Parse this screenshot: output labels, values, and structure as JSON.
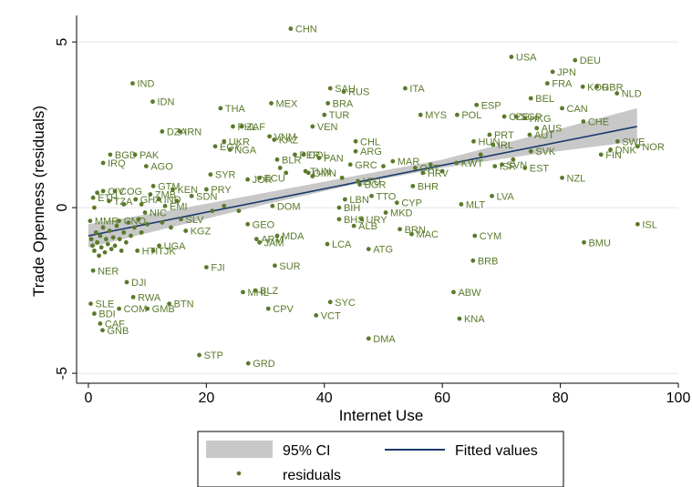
{
  "colors": {
    "background": "#ffffff",
    "point": "#5a7a2a",
    "point_label": "#5a7a2a",
    "fit_line": "#1a3a6b",
    "ci_band": "#c8c8c8",
    "grid": "#e5e5e5",
    "axis": "#000000"
  },
  "chart_data": {
    "type": "scatter",
    "xlabel": "Internet Use",
    "ylabel": "Trade Openness (residuals)",
    "xlim": [
      -2,
      100
    ],
    "ylim": [
      -5.3,
      5.8
    ],
    "xticks": [
      0,
      20,
      40,
      60,
      80,
      100
    ],
    "yticks": [
      -5,
      0,
      5
    ],
    "grid": "horizontal",
    "fitted": {
      "x": [
        0,
        93
      ],
      "y": [
        -0.85,
        2.45
      ]
    },
    "ci": {
      "x": [
        0,
        15,
        30,
        45,
        60,
        75,
        93
      ],
      "lower": [
        -1.2,
        -0.55,
        0.1,
        0.7,
        1.2,
        1.6,
        2.0
      ],
      "upper": [
        -0.5,
        -0.05,
        0.45,
        0.95,
        1.45,
        2.15,
        3.0
      ]
    },
    "legend": {
      "placement": "bottom",
      "items": [
        {
          "kind": "area",
          "label": "95% CI"
        },
        {
          "kind": "line",
          "label": "Fitted values"
        },
        {
          "kind": "marker",
          "label": "residuals"
        }
      ]
    },
    "points": [
      {
        "label": "CHN",
        "x": 34.3,
        "y": 5.4
      },
      {
        "label": "USA",
        "x": 71.7,
        "y": 4.55
      },
      {
        "label": "DEU",
        "x": 82.5,
        "y": 4.45
      },
      {
        "label": "JPN",
        "x": 78.7,
        "y": 4.1
      },
      {
        "label": "FRA",
        "x": 77.8,
        "y": 3.75
      },
      {
        "label": "KOR",
        "x": 83.8,
        "y": 3.65
      },
      {
        "label": "GBR",
        "x": 86.2,
        "y": 3.65
      },
      {
        "label": "NLD",
        "x": 89.6,
        "y": 3.45
      },
      {
        "label": "IND",
        "x": 7.5,
        "y": 3.75
      },
      {
        "label": "IDN",
        "x": 10.9,
        "y": 3.2
      },
      {
        "label": "SAU",
        "x": 41.0,
        "y": 3.6
      },
      {
        "label": "RUS",
        "x": 43.3,
        "y": 3.5
      },
      {
        "label": "ITA",
        "x": 53.7,
        "y": 3.6
      },
      {
        "label": "BRA",
        "x": 40.6,
        "y": 3.15
      },
      {
        "label": "MEX",
        "x": 31.0,
        "y": 3.15
      },
      {
        "label": "THA",
        "x": 22.4,
        "y": 3.0
      },
      {
        "label": "TUR",
        "x": 40.0,
        "y": 2.8
      },
      {
        "label": "ESP",
        "x": 65.8,
        "y": 3.1
      },
      {
        "label": "BEL",
        "x": 75.0,
        "y": 3.3
      },
      {
        "label": "CAN",
        "x": 80.3,
        "y": 3.0
      },
      {
        "label": "MYS",
        "x": 56.3,
        "y": 2.8
      },
      {
        "label": "POL",
        "x": 62.5,
        "y": 2.8
      },
      {
        "label": "CZE",
        "x": 70.5,
        "y": 2.75
      },
      {
        "label": "SGP",
        "x": 72.5,
        "y": 2.75
      },
      {
        "label": "HKG",
        "x": 74.0,
        "y": 2.7
      },
      {
        "label": "CHE",
        "x": 83.9,
        "y": 2.6
      },
      {
        "label": "AUS",
        "x": 76.0,
        "y": 2.4
      },
      {
        "label": "PHL",
        "x": 24.5,
        "y": 2.45
      },
      {
        "label": "ZAF",
        "x": 26.0,
        "y": 2.45
      },
      {
        "label": "DZA",
        "x": 12.5,
        "y": 2.3
      },
      {
        "label": "IRN",
        "x": 15.5,
        "y": 2.3
      },
      {
        "label": "VEN",
        "x": 38.0,
        "y": 2.45
      },
      {
        "label": "VNM",
        "x": 30.7,
        "y": 2.15
      },
      {
        "label": "KAZ",
        "x": 31.5,
        "y": 2.05
      },
      {
        "label": "UKR",
        "x": 23.0,
        "y": 2.0
      },
      {
        "label": "EGY",
        "x": 21.5,
        "y": 1.85
      },
      {
        "label": "NGA",
        "x": 24.0,
        "y": 1.75
      },
      {
        "label": "CHL",
        "x": 45.3,
        "y": 2.0
      },
      {
        "label": "ARG",
        "x": 45.3,
        "y": 1.7
      },
      {
        "label": "HUN",
        "x": 65.3,
        "y": 2.0
      },
      {
        "label": "IRL",
        "x": 68.6,
        "y": 1.9
      },
      {
        "label": "PRT",
        "x": 68.0,
        "y": 2.2
      },
      {
        "label": "AUT",
        "x": 74.8,
        "y": 2.2
      },
      {
        "label": "SWE",
        "x": 89.7,
        "y": 2.0
      },
      {
        "label": "NOR",
        "x": 93.1,
        "y": 1.85
      },
      {
        "label": "DNK",
        "x": 88.5,
        "y": 1.75
      },
      {
        "label": "FIN",
        "x": 86.9,
        "y": 1.6
      },
      {
        "label": "SVK",
        "x": 75.0,
        "y": 1.7
      },
      {
        "label": "ISR",
        "x": 68.9,
        "y": 1.25
      },
      {
        "label": "SVN",
        "x": 70.1,
        "y": 1.3
      },
      {
        "label": "EST",
        "x": 74.0,
        "y": 1.2
      },
      {
        "label": "NZL",
        "x": 80.3,
        "y": 0.9
      },
      {
        "label": "COL",
        "x": 36.5,
        "y": 1.6
      },
      {
        "label": "PER",
        "x": 35.0,
        "y": 1.6
      },
      {
        "label": "PAN",
        "x": 39.1,
        "y": 1.5
      },
      {
        "label": "BLR",
        "x": 32.0,
        "y": 1.45
      },
      {
        "label": "GRC",
        "x": 44.4,
        "y": 1.3
      },
      {
        "label": "MAR",
        "x": 51.6,
        "y": 1.4
      },
      {
        "label": "QAT",
        "x": 55.4,
        "y": 1.2
      },
      {
        "label": "KWT",
        "x": 62.4,
        "y": 1.35
      },
      {
        "label": "HRV",
        "x": 56.7,
        "y": 1.05
      },
      {
        "label": "BHR",
        "x": 55.0,
        "y": 0.65
      },
      {
        "label": "LVA",
        "x": 68.4,
        "y": 0.35
      },
      {
        "label": "BGD",
        "x": 3.7,
        "y": 1.6
      },
      {
        "label": "PAK",
        "x": 7.9,
        "y": 1.6
      },
      {
        "label": "IRQ",
        "x": 2.5,
        "y": 1.35
      },
      {
        "label": "AGO",
        "x": 9.8,
        "y": 1.25
      },
      {
        "label": "SYR",
        "x": 20.7,
        "y": 1.0
      },
      {
        "label": "ECU",
        "x": 29.0,
        "y": 0.9
      },
      {
        "label": "JOR",
        "x": 27.0,
        "y": 0.85
      },
      {
        "label": "TUN",
        "x": 36.8,
        "y": 1.1
      },
      {
        "label": "OMN",
        "x": 37.3,
        "y": 1.05
      },
      {
        "label": "LTU",
        "x": 45.7,
        "y": 0.8
      },
      {
        "label": "BGR",
        "x": 46.0,
        "y": 0.7
      },
      {
        "label": "GTM",
        "x": 11.0,
        "y": 0.65
      },
      {
        "label": "PRY",
        "x": 20.0,
        "y": 0.55
      },
      {
        "label": "CIV",
        "x": 2.5,
        "y": 0.5
      },
      {
        "label": "COG",
        "x": 4.5,
        "y": 0.5
      },
      {
        "label": "KEN",
        "x": 14.3,
        "y": 0.55
      },
      {
        "label": "ZMB",
        "x": 10.5,
        "y": 0.4
      },
      {
        "label": "SDN",
        "x": 17.5,
        "y": 0.35
      },
      {
        "label": "ETH",
        "x": 0.8,
        "y": 0.3
      },
      {
        "label": "TZA",
        "x": 3.5,
        "y": 0.2
      },
      {
        "label": "GHA",
        "x": 8.0,
        "y": 0.25
      },
      {
        "label": "IND2",
        "x": 12.0,
        "y": 0.25
      },
      {
        "label": "EMI",
        "x": 13.0,
        "y": 0.05
      },
      {
        "label": "TTO",
        "x": 48.0,
        "y": 0.35
      },
      {
        "label": "LBN",
        "x": 43.5,
        "y": 0.25
      },
      {
        "label": "CYP",
        "x": 52.3,
        "y": 0.15
      },
      {
        "label": "MLT",
        "x": 63.2,
        "y": 0.1
      },
      {
        "label": "BIH",
        "x": 42.5,
        "y": 0.0
      },
      {
        "label": "DOM",
        "x": 31.2,
        "y": 0.05
      },
      {
        "label": "MKD",
        "x": 50.4,
        "y": -0.15
      },
      {
        "label": "BHS",
        "x": 42.5,
        "y": -0.35
      },
      {
        "label": "URY",
        "x": 46.3,
        "y": -0.35
      },
      {
        "label": "ALB",
        "x": 45.0,
        "y": -0.55
      },
      {
        "label": "BRN",
        "x": 52.8,
        "y": -0.65
      },
      {
        "label": "MAC",
        "x": 54.8,
        "y": -0.8
      },
      {
        "label": "CYM",
        "x": 65.5,
        "y": -0.85
      },
      {
        "label": "BMU",
        "x": 84.0,
        "y": -1.05
      },
      {
        "label": "ISL",
        "x": 93.1,
        "y": -0.5
      },
      {
        "label": "LCA",
        "x": 40.5,
        "y": -1.1
      },
      {
        "label": "ATG",
        "x": 47.5,
        "y": -1.25
      },
      {
        "label": "BRB",
        "x": 65.2,
        "y": -1.6
      },
      {
        "label": "NIC",
        "x": 9.6,
        "y": -0.15
      },
      {
        "label": "MMR",
        "x": 0.3,
        "y": -0.4
      },
      {
        "label": "CNO",
        "x": 5.2,
        "y": -0.4
      },
      {
        "label": "SLV",
        "x": 15.7,
        "y": -0.35
      },
      {
        "label": "KGZ",
        "x": 16.5,
        "y": -0.7
      },
      {
        "label": "GEO",
        "x": 27.0,
        "y": -0.5
      },
      {
        "label": "MDA",
        "x": 32.0,
        "y": -0.85
      },
      {
        "label": "ARM",
        "x": 28.5,
        "y": -0.95
      },
      {
        "label": "JAM",
        "x": 29.0,
        "y": -1.05
      },
      {
        "label": "UGA",
        "x": 12.0,
        "y": -1.15
      },
      {
        "label": "TJK",
        "x": 11.0,
        "y": -1.3
      },
      {
        "label": "HTI",
        "x": 8.3,
        "y": -1.3
      },
      {
        "label": "NER",
        "x": 0.8,
        "y": -1.9
      },
      {
        "label": "FJI",
        "x": 20.0,
        "y": -1.8
      },
      {
        "label": "SUR",
        "x": 31.6,
        "y": -1.75
      },
      {
        "label": "DJI",
        "x": 6.5,
        "y": -2.25
      },
      {
        "label": "RWA",
        "x": 7.6,
        "y": -2.7
      },
      {
        "label": "BTN",
        "x": 13.7,
        "y": -2.9
      },
      {
        "label": "COM",
        "x": 5.2,
        "y": -3.05
      },
      {
        "label": "GMB",
        "x": 10.0,
        "y": -3.05
      },
      {
        "label": "MHL",
        "x": 26.2,
        "y": -2.55
      },
      {
        "label": "BLZ",
        "x": 28.3,
        "y": -2.5
      },
      {
        "label": "CPV",
        "x": 30.5,
        "y": -3.05
      },
      {
        "label": "SYC",
        "x": 41.0,
        "y": -2.85
      },
      {
        "label": "VCT",
        "x": 38.6,
        "y": -3.25
      },
      {
        "label": "ABW",
        "x": 61.9,
        "y": -2.55
      },
      {
        "label": "KNA",
        "x": 62.9,
        "y": -3.35
      },
      {
        "label": "DMA",
        "x": 47.5,
        "y": -3.95
      },
      {
        "label": "SLE",
        "x": 0.4,
        "y": -2.9
      },
      {
        "label": "BDI",
        "x": 1.0,
        "y": -3.2
      },
      {
        "label": "CAF",
        "x": 2.0,
        "y": -3.5
      },
      {
        "label": "GNB",
        "x": 2.4,
        "y": -3.7
      },
      {
        "label": "STP",
        "x": 18.8,
        "y": -4.45
      },
      {
        "label": "GRD",
        "x": 27.1,
        "y": -4.7
      },
      {
        "label": "",
        "x": 0.5,
        "y": -0.95
      },
      {
        "label": "",
        "x": 0.7,
        "y": -1.15
      },
      {
        "label": "",
        "x": 1.0,
        "y": -1.3
      },
      {
        "label": "",
        "x": 1.3,
        "y": -0.75
      },
      {
        "label": "",
        "x": 1.5,
        "y": -1.05
      },
      {
        "label": "",
        "x": 1.8,
        "y": -1.45
      },
      {
        "label": "",
        "x": 2.0,
        "y": -0.85
      },
      {
        "label": "",
        "x": 2.2,
        "y": -1.2
      },
      {
        "label": "",
        "x": 2.5,
        "y": -0.6
      },
      {
        "label": "",
        "x": 2.8,
        "y": -1.35
      },
      {
        "label": "",
        "x": 3.0,
        "y": -0.95
      },
      {
        "label": "",
        "x": 3.3,
        "y": -1.1
      },
      {
        "label": "",
        "x": 3.6,
        "y": -0.7
      },
      {
        "label": "",
        "x": 3.9,
        "y": -1.25
      },
      {
        "label": "",
        "x": 4.2,
        "y": -0.9
      },
      {
        "label": "",
        "x": 4.5,
        "y": -1.15
      },
      {
        "label": "",
        "x": 4.8,
        "y": -0.55
      },
      {
        "label": "",
        "x": 5.3,
        "y": -0.95
      },
      {
        "label": "",
        "x": 5.6,
        "y": -1.3
      },
      {
        "label": "",
        "x": 6.0,
        "y": -0.75
      },
      {
        "label": "",
        "x": 6.4,
        "y": -1.05
      },
      {
        "label": "",
        "x": 6.8,
        "y": -0.45
      },
      {
        "label": "",
        "x": 7.2,
        "y": -0.85
      },
      {
        "label": "",
        "x": 7.8,
        "y": -0.6
      },
      {
        "label": "",
        "x": 8.5,
        "y": -0.35
      },
      {
        "label": "",
        "x": 9.0,
        "y": -0.75
      },
      {
        "label": "",
        "x": 10.0,
        "y": -0.5
      },
      {
        "label": "",
        "x": 12.5,
        "y": -0.45
      },
      {
        "label": "",
        "x": 14.0,
        "y": -0.6
      },
      {
        "label": "",
        "x": 1.0,
        "y": 0.0
      },
      {
        "label": "",
        "x": 1.5,
        "y": 0.45
      },
      {
        "label": "",
        "x": 6.0,
        "y": 0.1
      },
      {
        "label": "",
        "x": 9.0,
        "y": 0.1
      },
      {
        "label": "",
        "x": 15.0,
        "y": 0.2
      },
      {
        "label": "",
        "x": 21.0,
        "y": -0.1
      },
      {
        "label": "",
        "x": 23.0,
        "y": 0.05
      },
      {
        "label": "",
        "x": 25.5,
        "y": -0.1
      },
      {
        "label": "",
        "x": 33.5,
        "y": 1.05
      },
      {
        "label": "",
        "x": 38.0,
        "y": 0.95
      },
      {
        "label": "",
        "x": 43.0,
        "y": 0.9
      },
      {
        "label": "",
        "x": 50.0,
        "y": 1.25
      },
      {
        "label": "",
        "x": 58.0,
        "y": 1.3
      },
      {
        "label": "",
        "x": 60.0,
        "y": 1.1
      },
      {
        "label": "",
        "x": 66.5,
        "y": 1.6
      },
      {
        "label": "",
        "x": 72.0,
        "y": 1.45
      },
      {
        "label": "",
        "x": 32.5,
        "y": 1.2
      }
    ]
  }
}
